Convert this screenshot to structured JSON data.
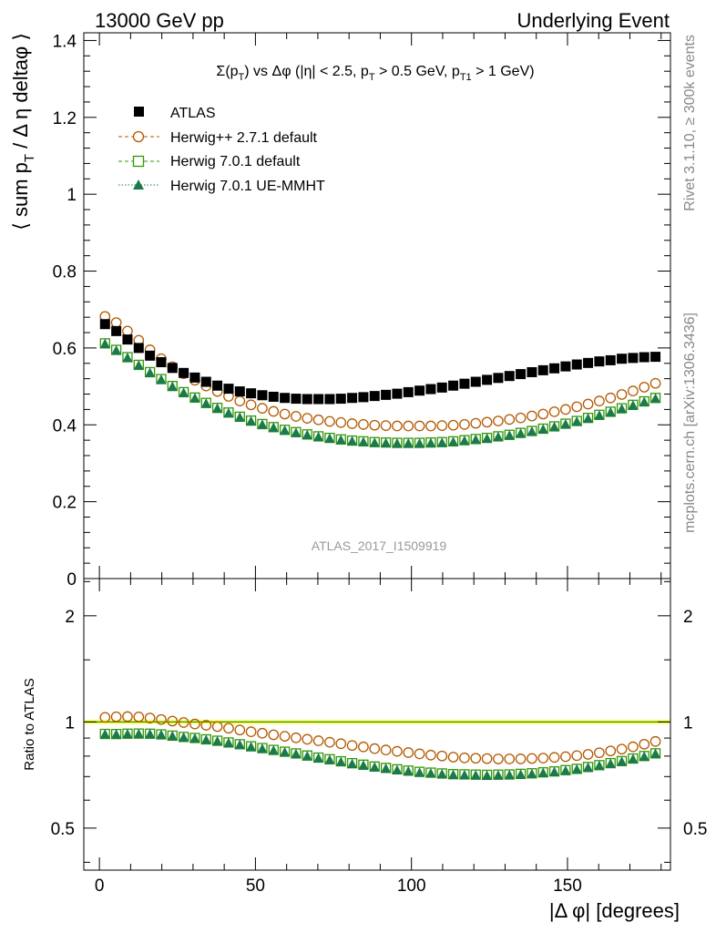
{
  "header": {
    "left": "13000 GeV pp",
    "right": "Underlying Event"
  },
  "side_text": {
    "rivet": "Rivet 3.1.10, ≥ 300k events",
    "mcplots": "mcplots.cern.ch [arXiv:1306.3436]"
  },
  "chart_data": [
    {
      "type": "scatter",
      "title": "Σ(pT) vs Δφ (|η| < 2.5, pT > 0.5 GeV, pT1 > 1 GeV)",
      "title_parts": {
        "a": "Σ(p",
        "a_sub": "T",
        "b": ") vs Δφ (|η| < 2.5, p",
        "b_sub": "T",
        "c": " > 0.5 GeV, p",
        "c_sub": "T1",
        "d": " > 1 GeV)"
      },
      "ylabel": "⟨ sum pT / Δη deltaφ ⟩",
      "ylabel_parts": {
        "a": "⟨ sum p",
        "a_sub": "T",
        "b": " / Δ η deltaφ ⟩"
      },
      "xlim": [
        -5,
        183
      ],
      "ylim": [
        0,
        1.42
      ],
      "yticks": [
        0,
        0.2,
        0.4,
        0.6,
        0.8,
        1,
        1.2,
        1.4
      ],
      "ytick_labels": [
        "0",
        "0.2",
        "0.4",
        "0.6",
        "0.8",
        "1",
        "1.2",
        "1.4"
      ],
      "watermark": "ATLAS_2017_I1509919",
      "legend_position": "top-left",
      "x": [
        1.8,
        5.4,
        9.0,
        12.6,
        16.2,
        19.8,
        23.4,
        27.0,
        30.6,
        34.2,
        37.8,
        41.4,
        45.0,
        48.6,
        52.2,
        55.8,
        59.4,
        63.0,
        66.6,
        70.2,
        73.8,
        77.4,
        81.0,
        84.6,
        88.2,
        91.8,
        95.4,
        99.0,
        102.6,
        106.2,
        109.8,
        113.4,
        117.0,
        120.6,
        124.2,
        127.8,
        131.4,
        135.0,
        138.6,
        142.2,
        145.8,
        149.4,
        153.0,
        156.6,
        160.2,
        163.8,
        167.4,
        171.0,
        174.6,
        178.2
      ],
      "series": [
        {
          "name": "ATLAS",
          "marker": "filled-square",
          "line": "none",
          "color": "#000000",
          "values": [
            0.662,
            0.644,
            0.622,
            0.6,
            0.58,
            0.563,
            0.548,
            0.535,
            0.523,
            0.512,
            0.502,
            0.494,
            0.487,
            0.482,
            0.477,
            0.473,
            0.47,
            0.468,
            0.467,
            0.467,
            0.467,
            0.468,
            0.47,
            0.472,
            0.475,
            0.478,
            0.481,
            0.485,
            0.489,
            0.493,
            0.497,
            0.502,
            0.507,
            0.512,
            0.517,
            0.522,
            0.527,
            0.532,
            0.537,
            0.542,
            0.547,
            0.552,
            0.557,
            0.561,
            0.565,
            0.568,
            0.572,
            0.574,
            0.576,
            0.577
          ]
        },
        {
          "name": "Herwig++ 2.7.1 default",
          "marker": "open-circle",
          "line": "dashed",
          "color": "#b35900",
          "values": [
            0.682,
            0.666,
            0.644,
            0.62,
            0.595,
            0.572,
            0.551,
            0.533,
            0.516,
            0.501,
            0.487,
            0.474,
            0.462,
            0.452,
            0.443,
            0.435,
            0.428,
            0.422,
            0.417,
            0.413,
            0.409,
            0.406,
            0.403,
            0.401,
            0.399,
            0.398,
            0.397,
            0.397,
            0.397,
            0.397,
            0.398,
            0.399,
            0.401,
            0.404,
            0.407,
            0.41,
            0.414,
            0.418,
            0.423,
            0.428,
            0.434,
            0.44,
            0.447,
            0.454,
            0.462,
            0.47,
            0.479,
            0.488,
            0.498,
            0.508
          ]
        },
        {
          "name": "Herwig 7.0.1 default",
          "marker": "open-square",
          "line": "dashed",
          "color": "#339900",
          "values": [
            0.612,
            0.595,
            0.576,
            0.556,
            0.537,
            0.519,
            0.501,
            0.485,
            0.471,
            0.457,
            0.444,
            0.432,
            0.421,
            0.411,
            0.402,
            0.394,
            0.387,
            0.381,
            0.375,
            0.37,
            0.366,
            0.362,
            0.359,
            0.357,
            0.355,
            0.354,
            0.353,
            0.353,
            0.353,
            0.354,
            0.355,
            0.357,
            0.36,
            0.363,
            0.366,
            0.37,
            0.374,
            0.379,
            0.384,
            0.39,
            0.396,
            0.403,
            0.41,
            0.418,
            0.426,
            0.434,
            0.443,
            0.452,
            0.461,
            0.47
          ]
        },
        {
          "name": "Herwig 7.0.1 UE-MMHT",
          "marker": "filled-triangle",
          "line": "dotted",
          "color": "#1a7a4c",
          "values": [
            0.61,
            0.593,
            0.574,
            0.554,
            0.535,
            0.517,
            0.499,
            0.483,
            0.469,
            0.455,
            0.442,
            0.43,
            0.419,
            0.409,
            0.4,
            0.392,
            0.385,
            0.379,
            0.373,
            0.368,
            0.364,
            0.36,
            0.357,
            0.355,
            0.353,
            0.352,
            0.351,
            0.351,
            0.351,
            0.352,
            0.353,
            0.355,
            0.358,
            0.361,
            0.364,
            0.368,
            0.372,
            0.377,
            0.382,
            0.388,
            0.394,
            0.401,
            0.408,
            0.416,
            0.424,
            0.432,
            0.441,
            0.45,
            0.459,
            0.468
          ]
        }
      ]
    },
    {
      "type": "scatter",
      "ylabel": "Ratio to ATLAS",
      "xlabel": "|Δ φ| [degrees]",
      "yscale": "log",
      "ylim": [
        0.38,
        2.55
      ],
      "yticks": [
        0.5,
        1,
        2
      ],
      "ytick_labels": [
        "0.5",
        "1",
        "2"
      ],
      "xticks": [
        0,
        50,
        100,
        150
      ],
      "xtick_labels": [
        "0",
        "50",
        "100",
        "150"
      ],
      "reference_band": {
        "center": 1.0,
        "halfwidth": 0.015,
        "color": "#ffff66",
        "line_color": "#2d8a2d"
      },
      "ratios_of": [
        "Herwig++ 2.7.1 default",
        "Herwig 7.0.1 default",
        "Herwig 7.0.1 UE-MMHT"
      ]
    }
  ]
}
